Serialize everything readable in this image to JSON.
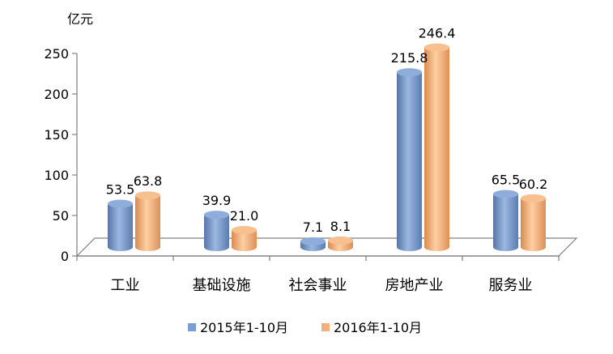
{
  "chart_data": {
    "type": "bar",
    "unit": "亿元",
    "categories": [
      "工业",
      "基础设施",
      "社会事业",
      "房地产业",
      "服务业"
    ],
    "series": [
      {
        "name": "2015年1-10月",
        "values": [
          53.5,
          39.9,
          7.1,
          215.8,
          65.5
        ],
        "color": "#7c9fd3"
      },
      {
        "name": "2016年1-10月",
        "values": [
          63.8,
          21.0,
          8.1,
          246.4,
          60.2
        ],
        "color": "#f5b07a"
      }
    ],
    "data_labels": [
      [
        "53.5",
        "39.9",
        "7.1",
        "215.8",
        "65.5"
      ],
      [
        "63.8",
        "21.0",
        "8.1",
        "246.4",
        "60.2"
      ]
    ],
    "ylim": [
      0,
      250
    ],
    "yticks": [
      0,
      50,
      100,
      150,
      200,
      250
    ],
    "ytick_labels": [
      "0",
      "50",
      "100",
      "150",
      "200",
      "250"
    ],
    "legend_position": "bottom",
    "grid": false
  }
}
